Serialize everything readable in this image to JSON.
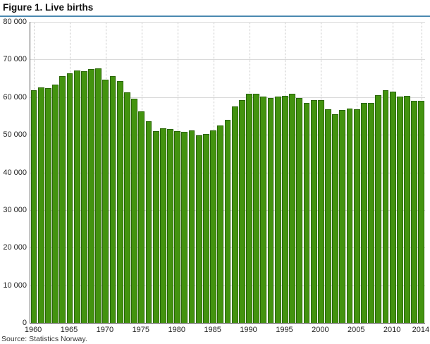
{
  "title": "Figure 1. Live births",
  "source": "Source: Statistics Norway.",
  "colors": {
    "bar_fill": "#43930f",
    "bar_border": "#2a6606",
    "grid": "#d9d9d9",
    "axis": "#4d4d4d",
    "title_rule": "#4b89b0"
  },
  "chart_data": {
    "type": "bar",
    "title": "Figure 1. Live births",
    "xlabel": "",
    "ylabel": "",
    "ylim": [
      0,
      80000
    ],
    "ytick_step": 10000,
    "grid": true,
    "legend": "none",
    "x": [
      1960,
      1961,
      1962,
      1963,
      1964,
      1965,
      1966,
      1967,
      1968,
      1969,
      1970,
      1971,
      1972,
      1973,
      1974,
      1975,
      1976,
      1977,
      1978,
      1979,
      1980,
      1981,
      1982,
      1983,
      1984,
      1985,
      1986,
      1987,
      1988,
      1989,
      1990,
      1991,
      1992,
      1993,
      1994,
      1995,
      1996,
      1997,
      1998,
      1999,
      2000,
      2001,
      2002,
      2003,
      2004,
      2005,
      2006,
      2007,
      2008,
      2009,
      2010,
      2011,
      2012,
      2013,
      2014
    ],
    "values": [
      61900,
      62600,
      62300,
      63300,
      65600,
      66300,
      67100,
      66800,
      67400,
      67700,
      64600,
      65600,
      64300,
      61200,
      59600,
      56300,
      53500,
      50900,
      51700,
      51600,
      51000,
      50700,
      51200,
      49900,
      50300,
      51100,
      52500,
      54000,
      57500,
      59300,
      60900,
      60800,
      60100,
      59700,
      60100,
      60300,
      60900,
      59800,
      58400,
      59300,
      59200,
      56700,
      55400,
      56500,
      57000,
      56800,
      58500,
      58500,
      60500,
      61800,
      61400,
      60200,
      60300,
      59000,
      59100
    ],
    "xticks": [
      1960,
      1965,
      1970,
      1975,
      1980,
      1985,
      1990,
      1995,
      2000,
      2005,
      2010,
      2014
    ]
  }
}
